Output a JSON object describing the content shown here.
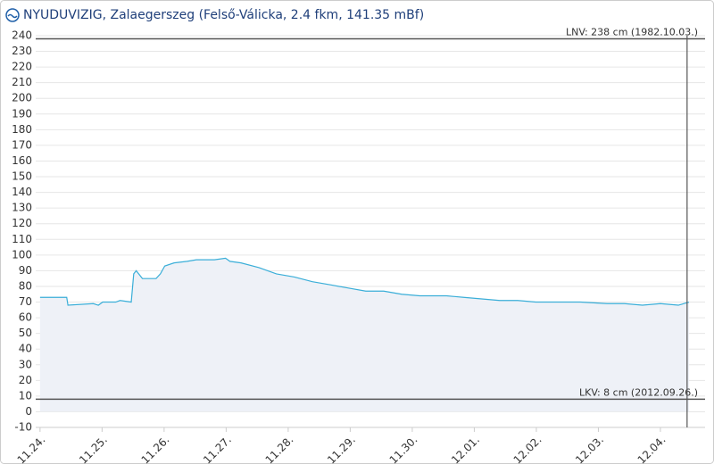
{
  "chart_data": {
    "type": "line",
    "title": "NYUDUVIZIG, Zalaegerszeg (Felső-Válicka, 2.4 fkm, 141.35 mBf)",
    "x": [
      0,
      0.43,
      0.45,
      0.86,
      0.94,
      1.01,
      1.22,
      1.29,
      1.47,
      1.51,
      1.55,
      1.65,
      1.87,
      1.94,
      2.01,
      2.16,
      2.37,
      2.52,
      2.81,
      2.99,
      3.06,
      3.24,
      3.53,
      3.81,
      4.1,
      4.39,
      4.68,
      4.96,
      5.25,
      5.54,
      5.83,
      6.12,
      6.55,
      6.83,
      7.12,
      7.41,
      7.7,
      7.99,
      8.27,
      8.71,
      9.14,
      9.42,
      9.71,
      10.0,
      10.29,
      10.46
    ],
    "series": [
      {
        "color": "#3aaed8",
        "values": [
          73,
          73,
          68,
          69,
          68,
          70,
          70,
          71,
          70,
          88,
          90,
          85,
          85,
          88,
          93,
          95,
          96,
          97,
          97,
          98,
          96,
          95,
          92,
          88,
          86,
          83,
          81,
          79,
          77,
          77,
          75,
          74,
          74,
          73,
          72,
          71,
          71,
          70,
          70,
          70,
          69,
          69,
          68,
          69,
          68,
          70
        ]
      }
    ],
    "area_color": "#eef1f7",
    "xlim": [
      -0.07,
      10.72
    ],
    "xticks": [
      {
        "value": 0,
        "label": "11.24."
      },
      {
        "value": 1,
        "label": "11.25."
      },
      {
        "value": 2,
        "label": "11.26."
      },
      {
        "value": 3,
        "label": "11.27."
      },
      {
        "value": 4,
        "label": "11.28."
      },
      {
        "value": 5,
        "label": "11.29."
      },
      {
        "value": 6,
        "label": "11.30."
      },
      {
        "value": 7,
        "label": "12.01."
      },
      {
        "value": 8,
        "label": "12.02."
      },
      {
        "value": 9,
        "label": "12.03."
      },
      {
        "value": 10,
        "label": "12.04."
      }
    ],
    "ylim": [
      -10,
      240
    ],
    "yticks": [
      -10,
      0,
      10,
      20,
      30,
      40,
      50,
      60,
      70,
      80,
      90,
      100,
      110,
      120,
      130,
      140,
      150,
      160,
      170,
      180,
      190,
      200,
      210,
      220,
      230,
      240
    ],
    "grid": true,
    "reference_lines": [
      {
        "value": 238,
        "label": "LNV: 238 cm (1982.10.03.)"
      },
      {
        "value": 8,
        "label": "LKV: 8 cm (2012.09.26.)"
      }
    ],
    "marker_x": 10.43
  }
}
